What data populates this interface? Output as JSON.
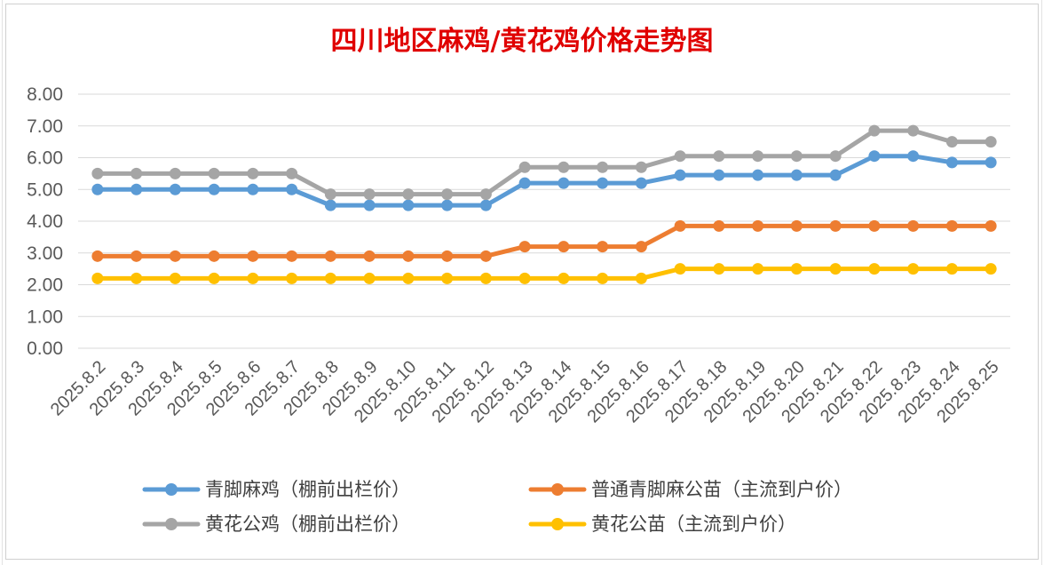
{
  "chart_data": {
    "type": "line",
    "title": "四川地区麻鸡/黄花鸡价格走势图",
    "xlabel": "",
    "ylabel": "",
    "ylim": [
      0,
      8
    ],
    "y_ticks": [
      "0.00",
      "1.00",
      "2.00",
      "3.00",
      "4.00",
      "5.00",
      "6.00",
      "7.00",
      "8.00"
    ],
    "grid": true,
    "legend_position": "bottom",
    "categories": [
      "2025.8.2",
      "2025.8.3",
      "2025.8.4",
      "2025.8.5",
      "2025.8.6",
      "2025.8.7",
      "2025.8.8",
      "2025.8.9",
      "2025.8.10",
      "2025.8.11",
      "2025.8.12",
      "2025.8.13",
      "2025.8.14",
      "2025.8.15",
      "2025.8.16",
      "2025.8.17",
      "2025.8.18",
      "2025.8.19",
      "2025.8.20",
      "2025.8.21",
      "2025.8.22",
      "2025.8.23",
      "2025.8.24",
      "2025.8.25"
    ],
    "series": [
      {
        "name": "青脚麻鸡（棚前出栏价）",
        "color": "#5b9bd5",
        "values": [
          5.0,
          5.0,
          5.0,
          5.0,
          5.0,
          5.0,
          4.5,
          4.5,
          4.5,
          4.5,
          4.5,
          5.2,
          5.2,
          5.2,
          5.2,
          5.45,
          5.45,
          5.45,
          5.45,
          5.45,
          6.05,
          6.05,
          5.85,
          5.85
        ]
      },
      {
        "name": "普通青脚麻公苗（主流到户价）",
        "color": "#ed7d31",
        "values": [
          2.9,
          2.9,
          2.9,
          2.9,
          2.9,
          2.9,
          2.9,
          2.9,
          2.9,
          2.9,
          2.9,
          3.2,
          3.2,
          3.2,
          3.2,
          3.85,
          3.85,
          3.85,
          3.85,
          3.85,
          3.85,
          3.85,
          3.85,
          3.85
        ]
      },
      {
        "name": "黄花公鸡（棚前出栏价）",
        "color": "#a5a5a5",
        "values": [
          5.5,
          5.5,
          5.5,
          5.5,
          5.5,
          5.5,
          4.85,
          4.85,
          4.85,
          4.85,
          4.85,
          5.7,
          5.7,
          5.7,
          5.7,
          6.05,
          6.05,
          6.05,
          6.05,
          6.05,
          6.85,
          6.85,
          6.5,
          6.5
        ]
      },
      {
        "name": "黄花公苗（主流到户价）",
        "color": "#ffc000",
        "values": [
          2.2,
          2.2,
          2.2,
          2.2,
          2.2,
          2.2,
          2.2,
          2.2,
          2.2,
          2.2,
          2.2,
          2.2,
          2.2,
          2.2,
          2.2,
          2.5,
          2.5,
          2.5,
          2.5,
          2.5,
          2.5,
          2.5,
          2.5,
          2.5
        ]
      }
    ]
  }
}
